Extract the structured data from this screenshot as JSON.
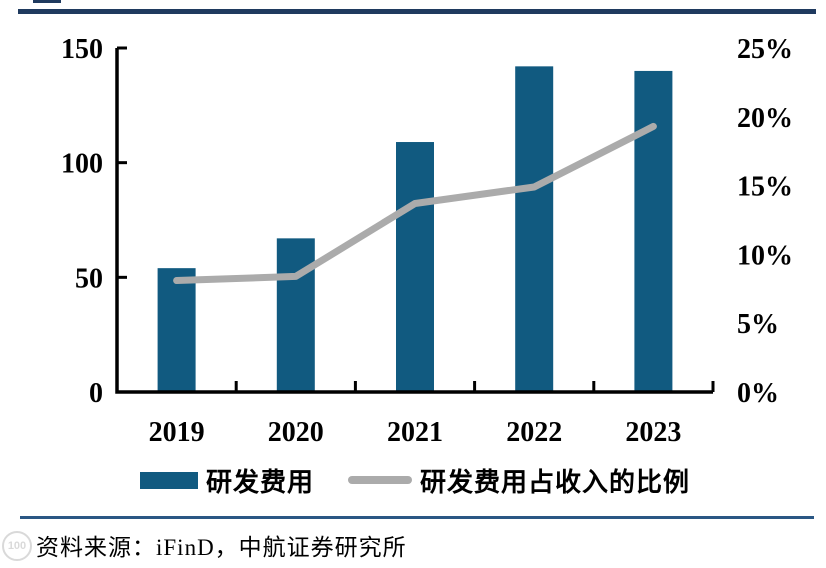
{
  "chart_data": {
    "type": "bar+line",
    "categories": [
      "2019",
      "2020",
      "2021",
      "2022",
      "2023"
    ],
    "series": [
      {
        "name": "研发费用",
        "type": "bar",
        "axis": "left",
        "values": [
          54,
          67,
          109,
          142,
          140
        ]
      },
      {
        "name": "研发费用占收入的比例",
        "type": "line",
        "axis": "right",
        "values": [
          8.1,
          8.4,
          13.7,
          14.9,
          19.3
        ]
      }
    ],
    "left_axis": {
      "min": 0,
      "max": 150,
      "ticks": [
        0,
        50,
        100,
        150
      ],
      "tick_labels": [
        "0",
        "50",
        "100",
        "150"
      ]
    },
    "right_axis": {
      "min": 0,
      "max": 25,
      "ticks": [
        0,
        5,
        10,
        15,
        20,
        25
      ],
      "tick_labels": [
        "0%",
        "5%",
        "10%",
        "15%",
        "20%",
        "25%"
      ]
    },
    "title": "",
    "grid": false,
    "legend_position": "bottom"
  },
  "colors": {
    "bar": "#115A80",
    "line": "#ABABAB",
    "axis": "#000000",
    "top_rule": "#1F3A5F",
    "footer_rule": "#2A5784"
  },
  "footer": {
    "source": "资料来源：iFinD，中航证券研究所"
  },
  "watermark": {
    "text": "100"
  }
}
